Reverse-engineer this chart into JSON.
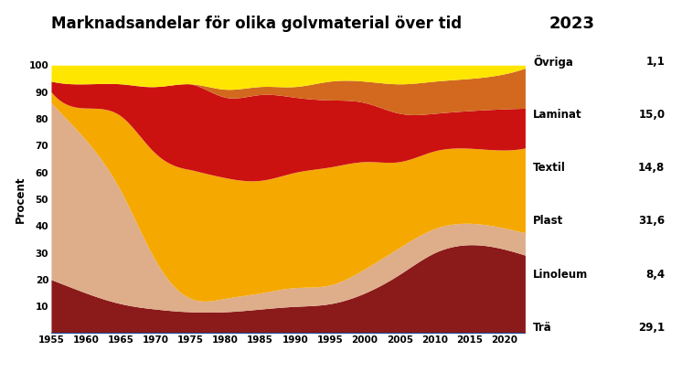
{
  "title": "Marknadsandelar för olika golvmaterial över tid",
  "year_label": "2023",
  "ylabel": "Procent",
  "background_color": "#ffffff",
  "years": [
    1955,
    1960,
    1965,
    1970,
    1975,
    1980,
    1985,
    1990,
    1995,
    2000,
    2005,
    2010,
    2015,
    2023
  ],
  "series": {
    "Trä": {
      "color": "#8B1A1A",
      "data": [
        20,
        15,
        11,
        9,
        8,
        8,
        9,
        10,
        11,
        15,
        22,
        30,
        33,
        29.1
      ]
    },
    "Linoleum": {
      "color": "#DEAD8A",
      "data": [
        66,
        57,
        42,
        18,
        5,
        5,
        6,
        7,
        7,
        9,
        10,
        9,
        8,
        8.4
      ]
    },
    "Plast": {
      "color": "#F5A800",
      "data": [
        4,
        12,
        28,
        40,
        48,
        45,
        42,
        43,
        44,
        40,
        32,
        29,
        28,
        31.6
      ]
    },
    "Textil": {
      "color": "#CC1111",
      "data": [
        4,
        9,
        12,
        25,
        32,
        30,
        32,
        28,
        25,
        22,
        18,
        14,
        14,
        14.8
      ]
    },
    "Laminat": {
      "color": "#D2691E",
      "data": [
        0,
        0,
        0,
        0,
        0,
        3,
        3,
        4,
        7,
        8,
        11,
        12,
        12,
        15.0
      ]
    },
    "Övriga": {
      "color": "#FFE600",
      "data": [
        6,
        7,
        7,
        8,
        7,
        9,
        8,
        8,
        6,
        6,
        7,
        6,
        5,
        1.1
      ]
    }
  },
  "legend_order": [
    "Övriga",
    "Laminat",
    "Textil",
    "Plast",
    "Linoleum",
    "Trä"
  ],
  "legend_values": {
    "Övriga": "1,1",
    "Laminat": "15,0",
    "Textil": "14,8",
    "Plast": "31,6",
    "Linoleum": "8,4",
    "Trä": "29,1"
  },
  "xlim": [
    1955,
    2023
  ],
  "ylim": [
    0,
    100
  ],
  "xticks": [
    1955,
    1960,
    1965,
    1970,
    1975,
    1980,
    1985,
    1990,
    1995,
    2000,
    2005,
    2010,
    2015,
    2020
  ],
  "yticks": [
    10,
    20,
    30,
    40,
    50,
    60,
    70,
    80,
    90,
    100
  ]
}
